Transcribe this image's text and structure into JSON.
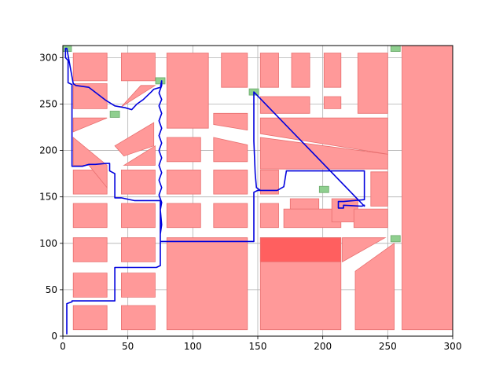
{
  "chart_data": {
    "type": "map-plot",
    "title": "",
    "xlabel": "",
    "ylabel": "",
    "xlim": [
      0,
      300
    ],
    "ylim": [
      0,
      313
    ],
    "xticks": [
      0,
      50,
      100,
      150,
      200,
      250,
      300
    ],
    "yticks": [
      0,
      50,
      100,
      150,
      200,
      250,
      300
    ],
    "grid": true,
    "colors": {
      "obstacle_fill": "#ff9999",
      "obstacle_edge": "#e87070",
      "highlight_fill": "#ff5f5f",
      "marker_fill": "#8fcf8f",
      "marker_edge": "#6aa96a",
      "path": "#0000dd",
      "grid": "#b0b0b0"
    },
    "obstacles": [
      {
        "pts": [
          [
            8,
            7
          ],
          [
            34,
            7
          ],
          [
            34,
            33
          ],
          [
            8,
            33
          ]
        ]
      },
      {
        "pts": [
          [
            45,
            7
          ],
          [
            71,
            7
          ],
          [
            71,
            33
          ],
          [
            45,
            33
          ]
        ]
      },
      {
        "pts": [
          [
            8,
            42
          ],
          [
            34,
            42
          ],
          [
            34,
            68
          ],
          [
            8,
            68
          ]
        ]
      },
      {
        "pts": [
          [
            45,
            42
          ],
          [
            71,
            42
          ],
          [
            71,
            68
          ],
          [
            45,
            68
          ]
        ]
      },
      {
        "pts": [
          [
            8,
            80
          ],
          [
            34,
            80
          ],
          [
            34,
            106
          ],
          [
            8,
            106
          ]
        ]
      },
      {
        "pts": [
          [
            45,
            80
          ],
          [
            71,
            80
          ],
          [
            71,
            106
          ],
          [
            45,
            106
          ]
        ]
      },
      {
        "pts": [
          [
            8,
            117
          ],
          [
            34,
            117
          ],
          [
            34,
            143
          ],
          [
            8,
            143
          ]
        ]
      },
      {
        "pts": [
          [
            45,
            117
          ],
          [
            71,
            117
          ],
          [
            71,
            143
          ],
          [
            45,
            143
          ]
        ]
      },
      {
        "pts": [
          [
            8,
            153
          ],
          [
            34,
            153
          ],
          [
            34,
            179
          ],
          [
            8,
            179
          ]
        ]
      },
      {
        "pts": [
          [
            45,
            153
          ],
          [
            71,
            153
          ],
          [
            71,
            179
          ],
          [
            45,
            179
          ]
        ]
      },
      {
        "pts": [
          [
            8,
            275
          ],
          [
            34,
            275
          ],
          [
            34,
            305
          ],
          [
            8,
            305
          ]
        ]
      },
      {
        "pts": [
          [
            45,
            275
          ],
          [
            71,
            275
          ],
          [
            71,
            305
          ],
          [
            45,
            305
          ]
        ]
      },
      {
        "pts": [
          [
            8,
            245
          ],
          [
            34,
            245
          ],
          [
            34,
            272
          ],
          [
            8,
            272
          ]
        ]
      },
      {
        "pts": [
          [
            45,
            247
          ],
          [
            60,
            270
          ],
          [
            71,
            270
          ]
        ]
      },
      {
        "pts": [
          [
            8,
            220
          ],
          [
            34,
            235
          ],
          [
            8,
            235
          ]
        ]
      },
      {
        "pts": [
          [
            8,
            184
          ],
          [
            20,
            184
          ],
          [
            34,
            160
          ],
          [
            34,
            184
          ],
          [
            8,
            214
          ]
        ],
        "alt": true
      },
      {
        "pts": [
          [
            40,
            205
          ],
          [
            70,
            230
          ],
          [
            70,
            205
          ],
          [
            47,
            194
          ]
        ]
      },
      {
        "pts": [
          [
            47,
            184
          ],
          [
            71,
            184
          ],
          [
            71,
            205
          ]
        ]
      },
      {
        "pts": [
          [
            80,
            7
          ],
          [
            142,
            7
          ],
          [
            142,
            106
          ],
          [
            80,
            106
          ]
        ]
      },
      {
        "pts": [
          [
            80,
            117
          ],
          [
            106,
            117
          ],
          [
            106,
            143
          ],
          [
            80,
            143
          ]
        ]
      },
      {
        "pts": [
          [
            80,
            153
          ],
          [
            106,
            153
          ],
          [
            106,
            179
          ],
          [
            80,
            179
          ]
        ]
      },
      {
        "pts": [
          [
            80,
            188
          ],
          [
            106,
            188
          ],
          [
            106,
            214
          ],
          [
            80,
            214
          ]
        ]
      },
      {
        "pts": [
          [
            80,
            224
          ],
          [
            112,
            224
          ],
          [
            112,
            305
          ],
          [
            80,
            305
          ]
        ]
      },
      {
        "pts": [
          [
            116,
            117
          ],
          [
            142,
            117
          ],
          [
            142,
            143
          ],
          [
            116,
            143
          ]
        ]
      },
      {
        "pts": [
          [
            116,
            153
          ],
          [
            142,
            153
          ],
          [
            142,
            179
          ],
          [
            116,
            179
          ]
        ]
      },
      {
        "pts": [
          [
            116,
            188
          ],
          [
            142,
            188
          ],
          [
            142,
            206
          ],
          [
            116,
            214
          ]
        ]
      },
      {
        "pts": [
          [
            116,
            240
          ],
          [
            142,
            240
          ],
          [
            142,
            222
          ],
          [
            116,
            228
          ]
        ]
      },
      {
        "pts": [
          [
            122,
            268
          ],
          [
            142,
            268
          ],
          [
            142,
            305
          ],
          [
            122,
            305
          ]
        ]
      },
      {
        "pts": [
          [
            152,
            7
          ],
          [
            214,
            7
          ],
          [
            214,
            106
          ],
          [
            152,
            106
          ]
        ]
      },
      {
        "pts": [
          [
            152,
            117
          ],
          [
            166,
            117
          ],
          [
            166,
            143
          ],
          [
            152,
            143
          ]
        ]
      },
      {
        "pts": [
          [
            152,
            153
          ],
          [
            166,
            153
          ],
          [
            166,
            179
          ],
          [
            152,
            179
          ]
        ]
      },
      {
        "pts": [
          [
            152,
            180
          ],
          [
            250,
            180
          ],
          [
            250,
            196
          ],
          [
            152,
            214
          ]
        ]
      },
      {
        "pts": [
          [
            152,
            235
          ],
          [
            250,
            235
          ],
          [
            250,
            196
          ],
          [
            152,
            218
          ]
        ]
      },
      {
        "pts": [
          [
            152,
            240
          ],
          [
            190,
            240
          ],
          [
            190,
            258
          ],
          [
            152,
            258
          ]
        ]
      },
      {
        "pts": [
          [
            152,
            268
          ],
          [
            166,
            268
          ],
          [
            166,
            305
          ],
          [
            152,
            305
          ]
        ]
      },
      {
        "pts": [
          [
            176,
            268
          ],
          [
            190,
            268
          ],
          [
            190,
            305
          ],
          [
            176,
            305
          ]
        ]
      },
      {
        "pts": [
          [
            175,
            123
          ],
          [
            197,
            123
          ],
          [
            197,
            148
          ],
          [
            175,
            148
          ]
        ]
      },
      {
        "pts": [
          [
            170,
            117
          ],
          [
            214,
            117
          ],
          [
            214,
            137
          ],
          [
            170,
            137
          ]
        ]
      },
      {
        "pts": [
          [
            201,
            268
          ],
          [
            214,
            268
          ],
          [
            214,
            305
          ],
          [
            201,
            305
          ]
        ]
      },
      {
        "pts": [
          [
            201,
            245
          ],
          [
            214,
            245
          ],
          [
            214,
            258
          ],
          [
            201,
            258
          ]
        ]
      },
      {
        "pts": [
          [
            207,
            123
          ],
          [
            227,
            123
          ],
          [
            227,
            148
          ],
          [
            207,
            148
          ]
        ]
      },
      {
        "pts": [
          [
            225,
            7
          ],
          [
            255,
            7
          ],
          [
            255,
            100
          ],
          [
            225,
            70
          ]
        ]
      },
      {
        "pts": [
          [
            215,
            80
          ],
          [
            248,
            106
          ],
          [
            215,
            106
          ]
        ]
      },
      {
        "pts": [
          [
            224,
            117
          ],
          [
            250,
            117
          ],
          [
            250,
            137
          ],
          [
            224,
            137
          ]
        ]
      },
      {
        "pts": [
          [
            227,
            240
          ],
          [
            250,
            240
          ],
          [
            250,
            305
          ],
          [
            227,
            305
          ]
        ]
      },
      {
        "pts": [
          [
            237,
            140
          ],
          [
            250,
            140
          ],
          [
            250,
            177
          ],
          [
            237,
            177
          ]
        ]
      },
      {
        "pts": [
          [
            261,
            7
          ],
          [
            301,
            7
          ],
          [
            301,
            313
          ],
          [
            261,
            313
          ]
        ]
      }
    ],
    "highlight": [
      [
        152,
        80
      ],
      [
        214,
        80
      ],
      [
        214,
        106
      ],
      [
        152,
        106
      ]
    ],
    "markers": [
      [
        3,
        310
      ],
      [
        40,
        239
      ],
      [
        75,
        275
      ],
      [
        147,
        263
      ],
      [
        201,
        158
      ],
      [
        256,
        310
      ],
      [
        256,
        105
      ]
    ],
    "path": [
      [
        3,
        2
      ],
      [
        3,
        35
      ],
      [
        7,
        37
      ],
      [
        7,
        38
      ],
      [
        40,
        38
      ],
      [
        40,
        74
      ],
      [
        72,
        74
      ],
      [
        75,
        76
      ],
      [
        75,
        115
      ],
      [
        75,
        146
      ],
      [
        55,
        146
      ],
      [
        45,
        149
      ],
      [
        40,
        149
      ],
      [
        40,
        157
      ],
      [
        40,
        175
      ],
      [
        36,
        178
      ],
      [
        36,
        186
      ],
      [
        33,
        186
      ],
      [
        25,
        185
      ],
      [
        20,
        185
      ],
      [
        15,
        183
      ],
      [
        7,
        183
      ],
      [
        7,
        271
      ],
      [
        4,
        273
      ],
      [
        4,
        297
      ],
      [
        2,
        300
      ],
      [
        2,
        310
      ],
      [
        3,
        310
      ],
      [
        8,
        272
      ],
      [
        10,
        270
      ],
      [
        20,
        268
      ],
      [
        33,
        254
      ],
      [
        40,
        248
      ],
      [
        48,
        246
      ],
      [
        53,
        244
      ],
      [
        57,
        250
      ],
      [
        62,
        255
      ],
      [
        68,
        263
      ],
      [
        70,
        266
      ],
      [
        75,
        268
      ],
      [
        76,
        275
      ],
      [
        76,
        270
      ],
      [
        74,
        262
      ],
      [
        76,
        255
      ],
      [
        74,
        248
      ],
      [
        76,
        240
      ],
      [
        74,
        232
      ],
      [
        76,
        224
      ],
      [
        74,
        216
      ],
      [
        76,
        208
      ],
      [
        74,
        200
      ],
      [
        76,
        192
      ],
      [
        74,
        184
      ],
      [
        76,
        176
      ],
      [
        74,
        168
      ],
      [
        76,
        160
      ],
      [
        74,
        152
      ],
      [
        76,
        144
      ],
      [
        75,
        136
      ],
      [
        76,
        120
      ],
      [
        75,
        110
      ],
      [
        75,
        102
      ],
      [
        147,
        102
      ],
      [
        147,
        155
      ],
      [
        150,
        157
      ],
      [
        165,
        157
      ],
      [
        170,
        161
      ],
      [
        172,
        178
      ],
      [
        232,
        178
      ],
      [
        232,
        147
      ],
      [
        216,
        145
      ],
      [
        212,
        145
      ],
      [
        212,
        138
      ],
      [
        216,
        138
      ],
      [
        216,
        141
      ],
      [
        230,
        140
      ],
      [
        232,
        141
      ],
      [
        232,
        140
      ],
      [
        147,
        263
      ],
      [
        147,
        210
      ],
      [
        148,
        175
      ],
      [
        149,
        160
      ],
      [
        152,
        157
      ]
    ]
  }
}
